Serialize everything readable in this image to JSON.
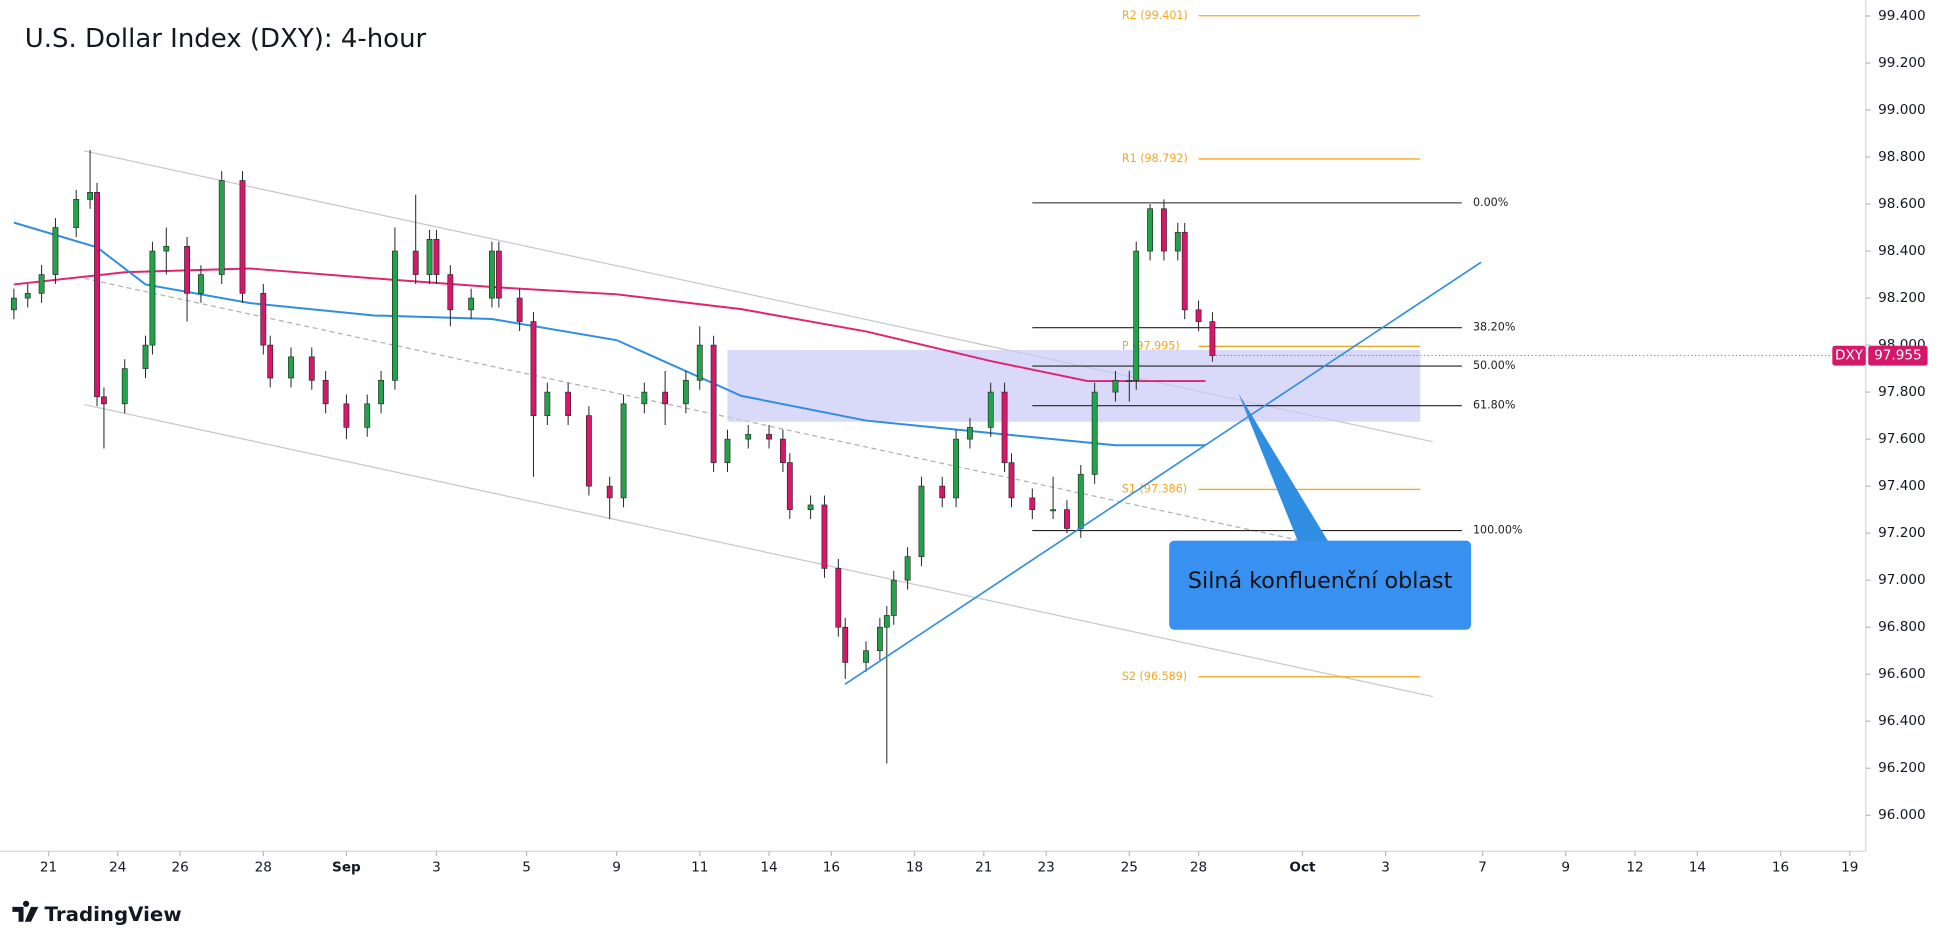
{
  "chart_data": {
    "type": "candlestick",
    "title": "U.S. Dollar Index (DXY): 4-hour",
    "symbol": "DXY",
    "last_price": 97.955,
    "brand": "TradingView",
    "annotation": "Silná konfluenční oblast",
    "up_color": "#22a34a",
    "down_color": "#d6186a",
    "xlim": [
      0,
      269.3
    ],
    "ylim": [
      95.847,
      99.468
    ],
    "xticks": [
      {
        "value": 7,
        "label": "21"
      },
      {
        "value": 17,
        "label": "24"
      },
      {
        "value": 26,
        "label": "26"
      },
      {
        "value": 38,
        "label": "28"
      },
      {
        "value": 50,
        "label": "Sep"
      },
      {
        "value": 63,
        "label": "3"
      },
      {
        "value": 76,
        "label": "5"
      },
      {
        "value": 89,
        "label": "9"
      },
      {
        "value": 101,
        "label": "11"
      },
      {
        "value": 111,
        "label": "14"
      },
      {
        "value": 120,
        "label": "16"
      },
      {
        "value": 132,
        "label": "18"
      },
      {
        "value": 142,
        "label": "21"
      },
      {
        "value": 151,
        "label": "23"
      },
      {
        "value": 163,
        "label": "25"
      },
      {
        "value": 173,
        "label": "28"
      },
      {
        "value": 188,
        "label": "Oct"
      },
      {
        "value": 200,
        "label": "3"
      },
      {
        "value": 214,
        "label": "7"
      },
      {
        "value": 226,
        "label": "9"
      },
      {
        "value": 236,
        "label": "12"
      },
      {
        "value": 245,
        "label": "14"
      },
      {
        "value": 257,
        "label": "16"
      },
      {
        "value": 267,
        "label": "19"
      }
    ],
    "yticks": [
      {
        "value": 96.0,
        "label": "96.000"
      },
      {
        "value": 96.2,
        "label": "96.200"
      },
      {
        "value": 96.4,
        "label": "96.400"
      },
      {
        "value": 96.6,
        "label": "96.600"
      },
      {
        "value": 96.8,
        "label": "96.800"
      },
      {
        "value": 97.0,
        "label": "97.000"
      },
      {
        "value": 97.2,
        "label": "97.200"
      },
      {
        "value": 97.4,
        "label": "97.400"
      },
      {
        "value": 97.6,
        "label": "97.600"
      },
      {
        "value": 97.8,
        "label": "97.800"
      },
      {
        "value": 98.0,
        "label": "98.000"
      },
      {
        "value": 98.2,
        "label": "98.200"
      },
      {
        "value": 98.4,
        "label": "98.400"
      },
      {
        "value": 98.6,
        "label": "98.600"
      },
      {
        "value": 98.8,
        "label": "98.800"
      },
      {
        "value": 99.0,
        "label": "99.000"
      },
      {
        "value": 99.2,
        "label": "99.200"
      },
      {
        "value": 99.4,
        "label": "99.400"
      }
    ],
    "candles": {
      "x": [
        2,
        4,
        6,
        8,
        11,
        13,
        14,
        15,
        18,
        21,
        22,
        24,
        27,
        29,
        32,
        35,
        38,
        39,
        42,
        45,
        47,
        50,
        53,
        55,
        57,
        60,
        62,
        63,
        65,
        68,
        71,
        72,
        75,
        77,
        79,
        82,
        85,
        88,
        90,
        93,
        96,
        99,
        101,
        103,
        105,
        108,
        111,
        113,
        114,
        117,
        119,
        121,
        122,
        125,
        127,
        128,
        129,
        131,
        133,
        136,
        138,
        140,
        143,
        145,
        146,
        149,
        152,
        154,
        156,
        158,
        161,
        163,
        164,
        166,
        168,
        170,
        171,
        173,
        175
      ],
      "open": [
        98.15,
        98.2,
        98.22,
        98.3,
        98.5,
        98.62,
        98.65,
        97.78,
        97.75,
        97.9,
        98.0,
        98.4,
        98.42,
        98.22,
        98.3,
        98.7,
        98.22,
        98.0,
        97.86,
        97.95,
        97.85,
        97.75,
        97.65,
        97.75,
        97.85,
        98.4,
        98.3,
        98.45,
        98.3,
        98.15,
        98.2,
        98.4,
        98.2,
        98.1,
        97.7,
        97.8,
        97.7,
        97.4,
        97.35,
        97.75,
        97.8,
        97.75,
        97.85,
        98.0,
        97.5,
        97.6,
        97.62,
        97.6,
        97.5,
        97.3,
        97.32,
        97.05,
        96.8,
        96.65,
        96.7,
        96.8,
        96.85,
        97.0,
        97.1,
        97.4,
        97.35,
        97.6,
        97.65,
        97.8,
        97.5,
        97.35,
        97.3,
        97.3,
        97.22,
        97.45,
        97.8,
        97.85,
        97.85,
        98.4,
        98.58,
        98.4,
        98.48,
        98.15,
        98.1
      ],
      "high": [
        98.24,
        98.26,
        98.34,
        98.54,
        98.66,
        98.83,
        98.69,
        97.82,
        97.94,
        98.04,
        98.44,
        98.5,
        98.46,
        98.34,
        98.74,
        98.74,
        98.26,
        98.04,
        97.99,
        97.99,
        97.89,
        97.79,
        97.79,
        97.89,
        98.5,
        98.64,
        98.49,
        98.49,
        98.34,
        98.24,
        98.44,
        98.44,
        98.24,
        98.14,
        97.84,
        97.84,
        97.74,
        97.44,
        97.79,
        97.84,
        97.89,
        97.89,
        98.08,
        98.04,
        97.64,
        97.66,
        97.66,
        97.64,
        97.54,
        97.36,
        97.36,
        97.09,
        96.84,
        96.74,
        96.84,
        96.89,
        97.04,
        97.14,
        97.44,
        97.44,
        97.64,
        97.69,
        97.84,
        97.84,
        97.54,
        97.39,
        97.44,
        97.34,
        97.49,
        97.84,
        97.89,
        97.89,
        98.44,
        98.6,
        98.62,
        98.52,
        98.52,
        98.19,
        98.14
      ],
      "low": [
        98.11,
        98.16,
        98.18,
        98.26,
        98.46,
        98.58,
        97.74,
        97.56,
        97.71,
        97.86,
        97.96,
        98.3,
        98.1,
        98.18,
        98.26,
        98.18,
        97.96,
        97.82,
        97.82,
        97.81,
        97.71,
        97.6,
        97.61,
        97.71,
        97.81,
        98.26,
        98.26,
        98.26,
        98.08,
        98.11,
        98.16,
        98.16,
        98.06,
        97.44,
        97.66,
        97.66,
        97.36,
        97.26,
        97.31,
        97.71,
        97.66,
        97.71,
        97.81,
        97.46,
        97.46,
        97.56,
        97.56,
        97.46,
        97.26,
        97.26,
        97.01,
        96.76,
        96.58,
        96.61,
        96.66,
        96.22,
        96.81,
        96.96,
        97.06,
        97.31,
        97.31,
        97.56,
        97.61,
        97.46,
        97.31,
        97.26,
        97.26,
        97.2,
        97.18,
        97.41,
        97.76,
        97.76,
        97.81,
        98.36,
        98.36,
        98.36,
        98.11,
        98.06,
        97.93
      ],
      "close": [
        98.2,
        98.22,
        98.3,
        98.5,
        98.62,
        98.65,
        97.78,
        97.75,
        97.9,
        98.0,
        98.4,
        98.42,
        98.22,
        98.3,
        98.7,
        98.22,
        98.0,
        97.86,
        97.95,
        97.85,
        97.75,
        97.65,
        97.75,
        97.85,
        98.4,
        98.3,
        98.45,
        98.3,
        98.15,
        98.2,
        98.4,
        98.2,
        98.1,
        97.7,
        97.8,
        97.7,
        97.4,
        97.35,
        97.75,
        97.8,
        97.75,
        97.85,
        98.0,
        97.5,
        97.6,
        97.62,
        97.6,
        97.5,
        97.3,
        97.32,
        97.05,
        96.8,
        96.65,
        96.7,
        96.8,
        96.85,
        97.0,
        97.1,
        97.4,
        97.35,
        97.6,
        97.65,
        97.8,
        97.5,
        97.35,
        97.3,
        97.3,
        97.22,
        97.45,
        97.8,
        97.85,
        97.85,
        98.4,
        98.58,
        98.4,
        98.48,
        98.15,
        98.1,
        97.955
      ]
    },
    "lines": [
      {
        "color": "#e0246e",
        "x": [
          2,
          18,
          36,
          54,
          71,
          89,
          107,
          125,
          143,
          157,
          174
        ],
        "values": [
          98.258,
          98.31,
          98.326,
          98.284,
          98.247,
          98.216,
          98.153,
          98.058,
          97.932,
          97.847,
          97.847
        ]
      },
      {
        "color": "#2f8ee0",
        "x": [
          2,
          14,
          21,
          36,
          54,
          71,
          89,
          107,
          125,
          143,
          161,
          174
        ],
        "values": [
          98.521,
          98.416,
          98.258,
          98.179,
          98.126,
          98.111,
          98.021,
          97.784,
          97.679,
          97.626,
          97.574,
          97.574
        ]
      }
    ],
    "zone": {
      "x": [
        105,
        205
      ],
      "y": [
        97.674,
        97.979
      ]
    },
    "fib": {
      "x": [
        149,
        211
      ],
      "levels": [
        {
          "label": "0.00%",
          "price": 98.605
        },
        {
          "label": "38.20%",
          "price": 98.074
        },
        {
          "label": "50.00%",
          "price": 97.911
        },
        {
          "label": "61.80%",
          "price": 97.742
        },
        {
          "label": "100.00%",
          "price": 97.211
        }
      ]
    },
    "pivots": {
      "x": [
        173,
        205
      ],
      "levels": [
        {
          "label": "R2 (99.401)",
          "value": 99.401
        },
        {
          "label": "R1 (98.792)",
          "value": 98.792
        },
        {
          "label": "P (97.995)",
          "value": 97.995
        },
        {
          "label": "S1 (97.386)",
          "value": 97.386
        },
        {
          "label": "S2 (96.589)",
          "value": 96.589
        }
      ]
    }
  }
}
